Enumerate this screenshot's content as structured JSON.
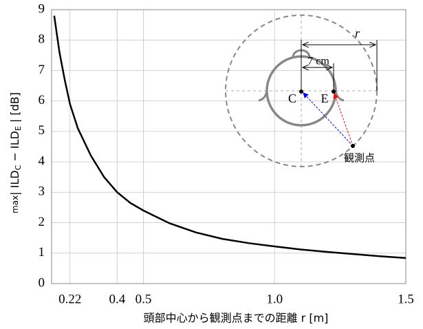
{
  "chart_data": {
    "type": "line",
    "xlabel": "頭部中心から観測点までの距離 r [m]",
    "ylabel": [
      "max",
      "| ILD",
      "C",
      " − ILD",
      "E",
      " | [dB]"
    ],
    "xlim": [
      0.15,
      1.5
    ],
    "ylim": [
      0,
      9
    ],
    "xticks": [
      0.22,
      0.4,
      0.5,
      {
        "value": 1,
        "label": "1.0"
      },
      1.5
    ],
    "yticks": [
      0,
      1,
      2,
      3,
      4,
      5,
      6,
      7,
      8,
      9
    ],
    "grid": true,
    "x": [
      0.16,
      0.18,
      0.2,
      0.22,
      0.25,
      0.3,
      0.35,
      0.4,
      0.45,
      0.5,
      0.6,
      0.7,
      0.8,
      0.9,
      1.0,
      1.1,
      1.2,
      1.3,
      1.4,
      1.5
    ],
    "series": [
      {
        "color": "#000000",
        "values": [
          8.8,
          7.6,
          6.7,
          5.9,
          5.1,
          4.2,
          3.5,
          3.0,
          2.65,
          2.4,
          1.98,
          1.68,
          1.47,
          1.33,
          1.22,
          1.12,
          1.04,
          0.97,
          0.9,
          0.84
        ]
      }
    ],
    "inset_labels": {
      "r": "r",
      "d": "7 cm",
      "c": "C",
      "e": "E",
      "p": "観測点"
    }
  }
}
